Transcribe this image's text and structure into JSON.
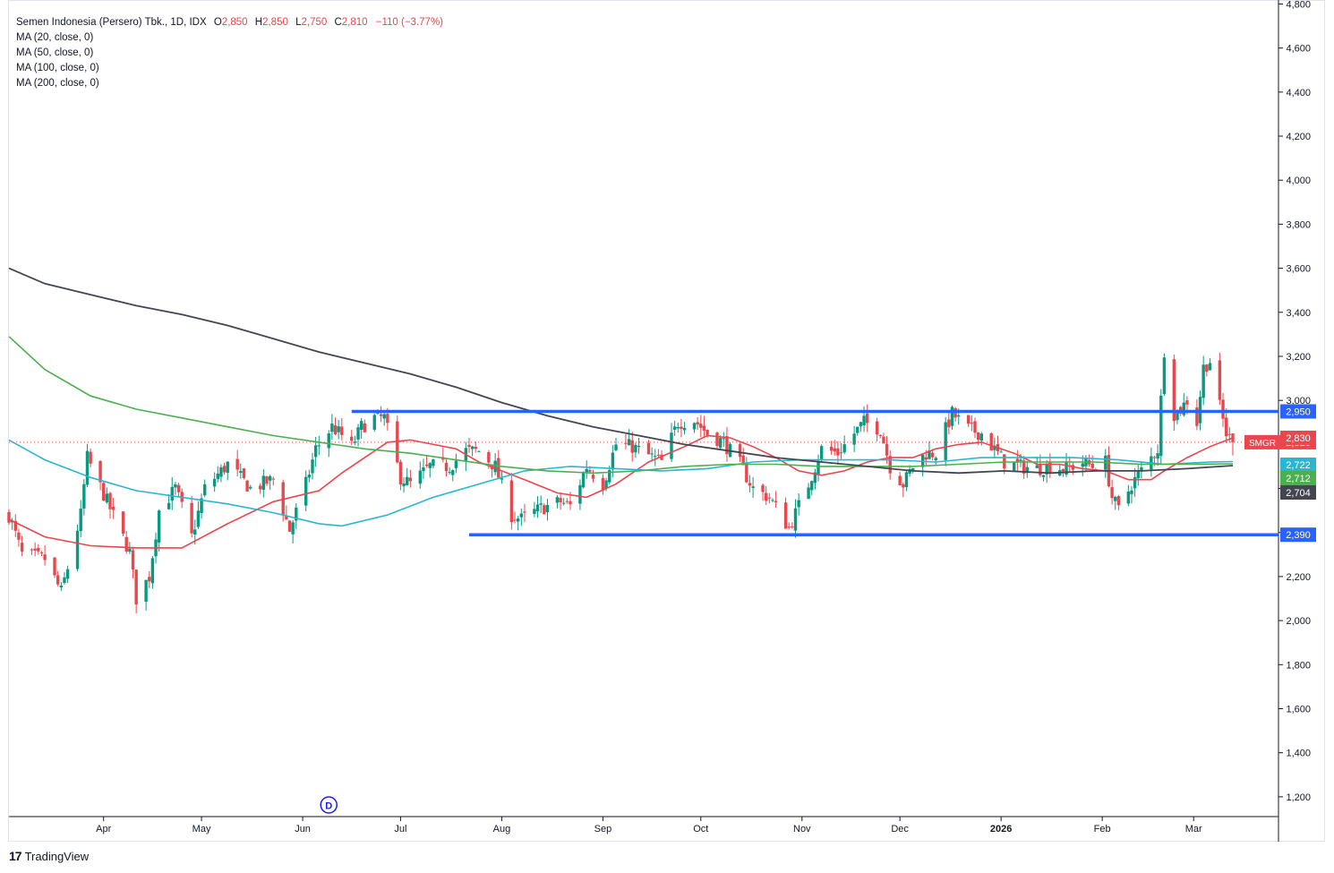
{
  "legend": {
    "symbol": "Semen Indonesia (Persero) Tbk., 1D, IDX",
    "o_label": "O",
    "o_value": "2,850",
    "h_label": "H",
    "h_value": "2,850",
    "l_label": "L",
    "l_value": "2,750",
    "c_label": "C",
    "c_value": "2,810",
    "change": "−110 (−3.77%)",
    "ma_lines": [
      "MA (20, close, 0)",
      "MA (50, close, 0)",
      "MA (100, close, 0)",
      "MA (200, close, 0)"
    ]
  },
  "colors": {
    "up": "#089981",
    "down": "#e8474d",
    "ma20": "#e8474d",
    "ma50": "#29b6d2",
    "ma100": "#4caf50",
    "ma200": "#434651",
    "level": "#2962ff",
    "grid": "#e0e3eb",
    "text": "#131722"
  },
  "chart_data": {
    "type": "candlestick",
    "y_axis_ticks": [
      1200,
      1400,
      1600,
      1800,
      2000,
      2200,
      2400,
      2600,
      2800,
      3000,
      3200,
      3400,
      3600,
      3800,
      4000,
      4200,
      4400,
      4600,
      4800
    ],
    "y_tick_labels": [
      "1,200",
      "1,400",
      "1,600",
      "1,800",
      "2,000",
      "2,200",
      "2,400",
      "2,600",
      "2,800",
      "3,000",
      "3,200",
      "3,400",
      "3,600",
      "3,800",
      "4,000",
      "4,200",
      "4,400",
      "4,600",
      "4,800"
    ],
    "ylim": [
      1110,
      4810
    ],
    "x_month_labels": [
      {
        "label": "Apr",
        "date": "2025-04-01"
      },
      {
        "label": "May",
        "date": "2025-05-01"
      },
      {
        "label": "Jun",
        "date": "2025-06-01"
      },
      {
        "label": "Jul",
        "date": "2025-07-01"
      },
      {
        "label": "Aug",
        "date": "2025-08-01"
      },
      {
        "label": "Sep",
        "date": "2025-09-01"
      },
      {
        "label": "Oct",
        "date": "2025-10-01"
      },
      {
        "label": "Nov",
        "date": "2025-11-01"
      },
      {
        "label": "Dec",
        "date": "2025-12-01"
      },
      {
        "label": "2026",
        "date": "2026-01-01"
      },
      {
        "label": "Feb",
        "date": "2026-02-01"
      },
      {
        "label": "Mar",
        "date": "2026-03-01"
      }
    ],
    "xlim": [
      "2025-03-03",
      "2026-03-27"
    ],
    "horizontal_levels": [
      {
        "value": 2950,
        "label": "2,950",
        "start": "2025-06-16",
        "end": "2026-03-27"
      },
      {
        "value": 2390,
        "label": "2,390",
        "start": "2025-07-22",
        "end": "2026-03-27"
      }
    ],
    "last_price": {
      "value": 2810,
      "label": "2,810",
      "ticker": "SMGR"
    },
    "ma_labels": [
      {
        "name": "MA (20, close, 0)",
        "value": 2830,
        "label": "2,830"
      },
      {
        "name": "MA (50, close, 0)",
        "value": 2722,
        "label": "2,722"
      },
      {
        "name": "MA (100, close, 0)",
        "value": 2712,
        "label": "2,712"
      },
      {
        "name": "MA (200, close, 0)",
        "value": 2704,
        "label": "2,704"
      }
    ],
    "dividend_marker": {
      "date": "2025-06-09",
      "label": "D"
    },
    "trend_path": [
      [
        "2025-03-03",
        2480
      ],
      [
        "2025-03-07",
        2300
      ],
      [
        "2025-03-14",
        2280
      ],
      [
        "2025-03-19",
        2130
      ],
      [
        "2025-03-21",
        2240
      ],
      [
        "2025-03-25",
        2480
      ],
      [
        "2025-03-27",
        2740
      ],
      [
        "2025-04-09",
        2310
      ],
      [
        "2025-04-11",
        2100
      ],
      [
        "2025-04-15",
        2200
      ],
      [
        "2025-04-18",
        2500
      ],
      [
        "2025-04-23",
        2600
      ],
      [
        "2025-04-28",
        2380
      ],
      [
        "2025-05-02",
        2600
      ],
      [
        "2025-05-09",
        2710
      ],
      [
        "2025-05-16",
        2600
      ],
      [
        "2025-05-23",
        2640
      ],
      [
        "2025-05-28",
        2410
      ],
      [
        "2025-06-02",
        2620
      ],
      [
        "2025-06-05",
        2780
      ],
      [
        "2025-06-10",
        2880
      ],
      [
        "2025-06-13",
        2840
      ],
      [
        "2025-06-16",
        2790
      ],
      [
        "2025-06-19",
        2880
      ],
      [
        "2025-06-23",
        2920
      ],
      [
        "2025-06-26",
        2920
      ],
      [
        "2025-07-01",
        2650
      ],
      [
        "2025-07-04",
        2620
      ],
      [
        "2025-07-10",
        2700
      ],
      [
        "2025-07-16",
        2700
      ],
      [
        "2025-07-21",
        2770
      ],
      [
        "2025-07-25",
        2770
      ],
      [
        "2025-07-30",
        2700
      ],
      [
        "2025-08-04",
        2480
      ],
      [
        "2025-08-07",
        2460
      ],
      [
        "2025-08-13",
        2510
      ],
      [
        "2025-08-19",
        2540
      ],
      [
        "2025-08-22",
        2520
      ],
      [
        "2025-08-27",
        2700
      ],
      [
        "2025-09-01",
        2620
      ],
      [
        "2025-09-05",
        2800
      ],
      [
        "2025-09-10",
        2790
      ],
      [
        "2025-09-15",
        2750
      ],
      [
        "2025-09-19",
        2720
      ],
      [
        "2025-09-24",
        2900
      ],
      [
        "2025-09-29",
        2910
      ],
      [
        "2025-10-03",
        2850
      ],
      [
        "2025-10-08",
        2810
      ],
      [
        "2025-10-13",
        2710
      ],
      [
        "2025-10-17",
        2600
      ],
      [
        "2025-10-22",
        2560
      ],
      [
        "2025-10-28",
        2420
      ],
      [
        "2025-11-03",
        2620
      ],
      [
        "2025-11-07",
        2780
      ],
      [
        "2025-11-12",
        2760
      ],
      [
        "2025-11-17",
        2850
      ],
      [
        "2025-11-20",
        2900
      ],
      [
        "2025-11-25",
        2870
      ],
      [
        "2025-11-28",
        2700
      ],
      [
        "2025-12-02",
        2620
      ],
      [
        "2025-12-05",
        2700
      ],
      [
        "2025-12-09",
        2760
      ],
      [
        "2025-12-12",
        2760
      ],
      [
        "2025-12-17",
        2940
      ],
      [
        "2025-12-22",
        2870
      ],
      [
        "2025-12-26",
        2850
      ],
      [
        "2026-01-02",
        2720
      ],
      [
        "2026-01-07",
        2700
      ],
      [
        "2026-01-12",
        2690
      ],
      [
        "2026-01-16",
        2700
      ],
      [
        "2026-01-21",
        2690
      ],
      [
        "2026-01-26",
        2720
      ],
      [
        "2026-01-29",
        2700
      ],
      [
        "2026-02-02",
        2720
      ],
      [
        "2026-02-04",
        2560
      ],
      [
        "2026-02-06",
        2500
      ],
      [
        "2026-02-10",
        2620
      ],
      [
        "2026-02-13",
        2680
      ],
      [
        "2026-02-18",
        2780
      ],
      [
        "2026-02-20",
        3230
      ],
      [
        "2026-02-23",
        2940
      ],
      [
        "2026-02-25",
        2960
      ],
      [
        "2026-02-27",
        3000
      ],
      [
        "2026-03-02",
        2900
      ],
      [
        "2026-03-04",
        3150
      ],
      [
        "2026-03-06",
        3180
      ],
      [
        "2026-03-09",
        2970
      ],
      [
        "2026-03-11",
        2850
      ],
      [
        "2026-03-13",
        2810
      ]
    ],
    "last_candle": {
      "date": "2026-03-13",
      "o": 2850,
      "h": 2850,
      "l": 2750,
      "c": 2810
    },
    "series": [
      {
        "name": "MA (20, close, 0)",
        "points": [
          [
            "2025-03-03",
            2460
          ],
          [
            "2025-03-14",
            2380
          ],
          [
            "2025-03-28",
            2340
          ],
          [
            "2025-04-11",
            2330
          ],
          [
            "2025-04-25",
            2330
          ],
          [
            "2025-05-09",
            2440
          ],
          [
            "2025-05-23",
            2540
          ],
          [
            "2025-06-06",
            2590
          ],
          [
            "2025-06-13",
            2670
          ],
          [
            "2025-06-20",
            2740
          ],
          [
            "2025-06-27",
            2810
          ],
          [
            "2025-07-04",
            2820
          ],
          [
            "2025-07-18",
            2780
          ],
          [
            "2025-07-25",
            2720
          ],
          [
            "2025-08-01",
            2680
          ],
          [
            "2025-08-08",
            2640
          ],
          [
            "2025-08-18",
            2580
          ],
          [
            "2025-08-27",
            2560
          ],
          [
            "2025-09-05",
            2620
          ],
          [
            "2025-09-15",
            2720
          ],
          [
            "2025-09-26",
            2790
          ],
          [
            "2025-10-03",
            2840
          ],
          [
            "2025-10-10",
            2830
          ],
          [
            "2025-10-17",
            2790
          ],
          [
            "2025-10-24",
            2740
          ],
          [
            "2025-10-31",
            2680
          ],
          [
            "2025-11-07",
            2660
          ],
          [
            "2025-11-14",
            2680
          ],
          [
            "2025-11-21",
            2720
          ],
          [
            "2025-11-28",
            2740
          ],
          [
            "2025-12-05",
            2740
          ],
          [
            "2025-12-12",
            2780
          ],
          [
            "2025-12-19",
            2800
          ],
          [
            "2025-12-26",
            2810
          ],
          [
            "2026-01-05",
            2760
          ],
          [
            "2026-01-12",
            2710
          ],
          [
            "2026-01-19",
            2710
          ],
          [
            "2026-01-26",
            2690
          ],
          [
            "2026-02-02",
            2680
          ],
          [
            "2026-02-09",
            2640
          ],
          [
            "2026-02-16",
            2640
          ],
          [
            "2026-02-20",
            2680
          ],
          [
            "2026-02-27",
            2740
          ],
          [
            "2026-03-06",
            2790
          ],
          [
            "2026-03-13",
            2830
          ]
        ]
      },
      {
        "name": "MA (50, close, 0)",
        "points": [
          [
            "2025-03-03",
            2820
          ],
          [
            "2025-03-14",
            2730
          ],
          [
            "2025-03-28",
            2650
          ],
          [
            "2025-04-11",
            2590
          ],
          [
            "2025-04-25",
            2560
          ],
          [
            "2025-05-09",
            2530
          ],
          [
            "2025-05-23",
            2490
          ],
          [
            "2025-06-06",
            2440
          ],
          [
            "2025-06-13",
            2430
          ],
          [
            "2025-06-27",
            2480
          ],
          [
            "2025-07-11",
            2560
          ],
          [
            "2025-07-25",
            2620
          ],
          [
            "2025-08-08",
            2680
          ],
          [
            "2025-08-22",
            2700
          ],
          [
            "2025-09-05",
            2690
          ],
          [
            "2025-09-19",
            2680
          ],
          [
            "2025-10-03",
            2690
          ],
          [
            "2025-10-17",
            2720
          ],
          [
            "2025-10-31",
            2730
          ],
          [
            "2025-11-14",
            2730
          ],
          [
            "2025-11-28",
            2730
          ],
          [
            "2025-12-12",
            2720
          ],
          [
            "2025-12-26",
            2740
          ],
          [
            "2026-01-09",
            2740
          ],
          [
            "2026-01-23",
            2740
          ],
          [
            "2026-02-06",
            2730
          ],
          [
            "2026-02-20",
            2710
          ],
          [
            "2026-03-06",
            2720
          ],
          [
            "2026-03-13",
            2722
          ]
        ]
      },
      {
        "name": "MA (100, close, 0)",
        "points": [
          [
            "2025-03-03",
            3290
          ],
          [
            "2025-03-14",
            3140
          ],
          [
            "2025-03-28",
            3020
          ],
          [
            "2025-04-11",
            2960
          ],
          [
            "2025-04-25",
            2920
          ],
          [
            "2025-05-09",
            2880
          ],
          [
            "2025-05-23",
            2840
          ],
          [
            "2025-06-06",
            2810
          ],
          [
            "2025-06-20",
            2780
          ],
          [
            "2025-07-04",
            2760
          ],
          [
            "2025-07-18",
            2730
          ],
          [
            "2025-08-01",
            2700
          ],
          [
            "2025-08-15",
            2680
          ],
          [
            "2025-08-29",
            2670
          ],
          [
            "2025-09-12",
            2680
          ],
          [
            "2025-09-26",
            2700
          ],
          [
            "2025-10-10",
            2710
          ],
          [
            "2025-10-24",
            2710
          ],
          [
            "2025-11-07",
            2700
          ],
          [
            "2025-11-21",
            2700
          ],
          [
            "2025-12-05",
            2700
          ],
          [
            "2025-12-19",
            2710
          ],
          [
            "2026-01-02",
            2720
          ],
          [
            "2026-01-16",
            2720
          ],
          [
            "2026-01-30",
            2720
          ],
          [
            "2026-02-13",
            2710
          ],
          [
            "2026-02-27",
            2710
          ],
          [
            "2026-03-13",
            2712
          ]
        ]
      },
      {
        "name": "MA (200, close, 0)",
        "points": [
          [
            "2025-03-03",
            3600
          ],
          [
            "2025-03-14",
            3530
          ],
          [
            "2025-03-28",
            3480
          ],
          [
            "2025-04-11",
            3430
          ],
          [
            "2025-04-25",
            3390
          ],
          [
            "2025-05-09",
            3340
          ],
          [
            "2025-05-23",
            3280
          ],
          [
            "2025-06-06",
            3220
          ],
          [
            "2025-06-20",
            3170
          ],
          [
            "2025-07-04",
            3120
          ],
          [
            "2025-07-18",
            3060
          ],
          [
            "2025-08-01",
            2990
          ],
          [
            "2025-08-15",
            2930
          ],
          [
            "2025-08-29",
            2880
          ],
          [
            "2025-09-12",
            2840
          ],
          [
            "2025-09-26",
            2800
          ],
          [
            "2025-10-10",
            2770
          ],
          [
            "2025-10-24",
            2740
          ],
          [
            "2025-11-07",
            2720
          ],
          [
            "2025-11-21",
            2700
          ],
          [
            "2025-12-05",
            2680
          ],
          [
            "2025-12-19",
            2670
          ],
          [
            "2026-01-02",
            2680
          ],
          [
            "2026-01-16",
            2670
          ],
          [
            "2026-01-30",
            2680
          ],
          [
            "2026-02-13",
            2680
          ],
          [
            "2026-02-27",
            2690
          ],
          [
            "2026-03-13",
            2704
          ]
        ]
      }
    ]
  },
  "footer": {
    "logo": "17",
    "brand": "TradingView"
  }
}
